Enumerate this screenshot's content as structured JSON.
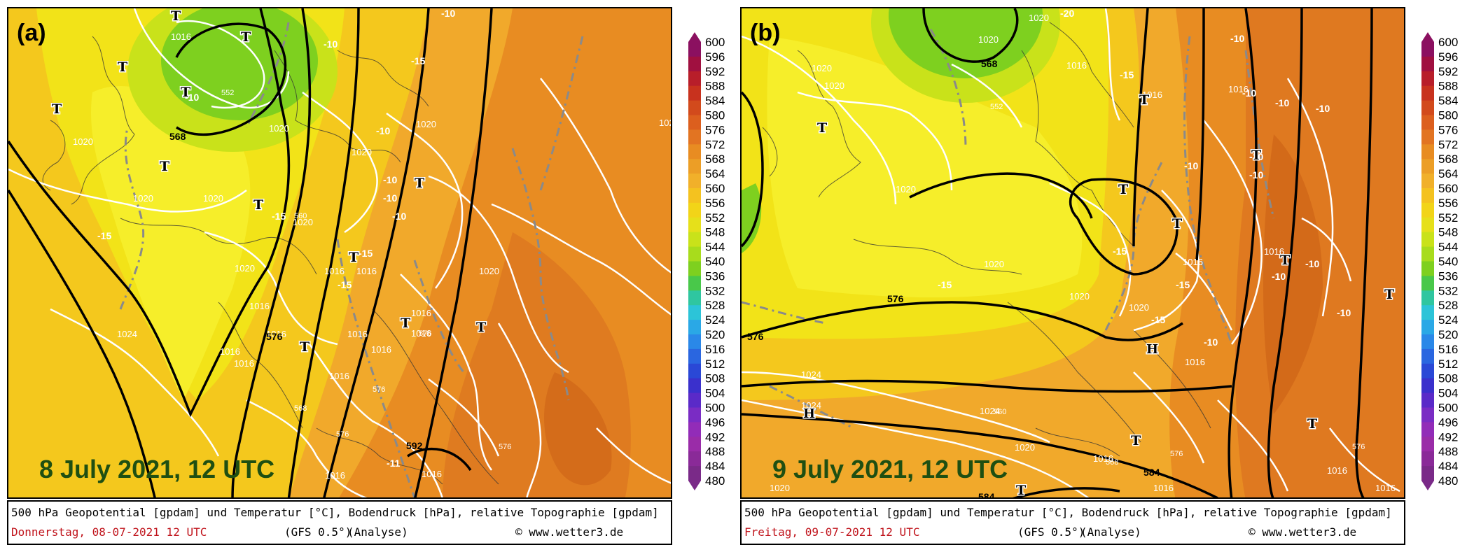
{
  "colors": {
    "geo_fill_green": "#7ed01f",
    "geo_fill_yellowgreen": "#c9e21a",
    "geo_fill_yellow": "#f2e318",
    "geo_fill_yelloworange": "#f4c81d",
    "geo_fill_lightorange": "#f1a92b",
    "geo_fill_orange": "#e88c22",
    "geo_fill_darkorange": "#dc7420",
    "geopotential_contour": "#000000",
    "surface_pressure_contour": "#ffffff",
    "temperature_contour": "#808080",
    "date_label": "#1f4f12",
    "info_date": "#c0141c"
  },
  "colorbar": {
    "labels": [
      "600",
      "596",
      "592",
      "588",
      "584",
      "580",
      "576",
      "572",
      "568",
      "564",
      "560",
      "556",
      "552",
      "548",
      "544",
      "540",
      "536",
      "532",
      "528",
      "524",
      "520",
      "516",
      "512",
      "508",
      "504",
      "500",
      "496",
      "492",
      "488",
      "484",
      "480"
    ],
    "colors": [
      "#8b1060",
      "#a01040",
      "#b81e2a",
      "#c8321e",
      "#d24a1c",
      "#dc5f1e",
      "#e27422",
      "#e88c22",
      "#ec9e26",
      "#f1b02a",
      "#f4c21f",
      "#f2d418",
      "#e6e01a",
      "#c9e21a",
      "#a8dc1c",
      "#7ed01f",
      "#49c84a",
      "#2fc6a0",
      "#2cc4d8",
      "#2aa8e6",
      "#2a88e8",
      "#2a66e0",
      "#2a48d6",
      "#3a30cc",
      "#5a2ac8",
      "#7a2cc4",
      "#922cb8",
      "#9a2ca8",
      "#8a2a98",
      "#7a2a88"
    ]
  },
  "panels": [
    {
      "letter": "(a)",
      "date_label": "8 July 2021, 12 UTC",
      "info_line1": "500 hPa Geopotential [gpdam] und Temperatur [°C], Bodendruck [hPa], relative Topographie [gpdam]",
      "info_date": "Donnerstag, 08-07-2021  12 UTC",
      "info_model": "(GFS 0.5°)",
      "info_analysis": "(Analyse)",
      "info_credit": "© www.wetter3.de",
      "geopotential_labels": [
        "568",
        "576",
        "592"
      ],
      "pressure_labels": [
        "1016",
        "1020",
        "1020",
        "1020",
        "1020",
        "1020",
        "1020",
        "1020",
        "1024",
        "1020",
        "1016",
        "1016",
        "1016",
        "1016",
        "1016",
        "1016",
        "1016",
        "1016",
        "1016",
        "1016",
        "1016",
        "1016",
        "1016",
        "1020",
        "102"
      ],
      "temperature_labels": [
        "-10",
        "-15",
        "-10",
        "-15",
        "-15",
        "-10",
        "-10",
        "-10",
        "-10",
        "-15",
        "-15",
        "-11",
        "-10"
      ],
      "low_markers": [
        "T",
        "T",
        "T",
        "T",
        "T",
        "T",
        "T",
        "T",
        "T",
        "T",
        "T",
        "T"
      ],
      "topo_labels": [
        "552",
        "560",
        "576",
        "576",
        "576",
        "568",
        "576"
      ]
    },
    {
      "letter": "(b)",
      "date_label": "9 July 2021, 12 UTC",
      "info_line1": "500 hPa Geopotential [gpdam] und Temperatur [°C], Bodendruck [hPa], relative Topographie [gpdam]",
      "info_date": "Freitag, 09-07-2021  12 UTC",
      "info_model": "(GFS 0.5°)",
      "info_analysis": "(Analyse)",
      "info_credit": "© www.wetter3.de",
      "geopotential_labels": [
        "568",
        "576",
        "576",
        "584",
        "584"
      ],
      "pressure_labels": [
        "1020",
        "1020",
        "1020",
        "1020",
        "1020",
        "1020",
        "1016",
        "1016",
        "1020",
        "1024",
        "1024",
        "1024",
        "1016",
        "1020",
        "1016",
        "1016",
        "1016",
        "1016",
        "1016",
        "1016",
        "1020",
        "1020",
        "1016"
      ],
      "temperature_labels": [
        "-20",
        "-15",
        "-10",
        "-10",
        "-10",
        "-10",
        "-10",
        "-10",
        "-15",
        "-15",
        "-15",
        "-15",
        "-10",
        "-10",
        "-10",
        "-10",
        "-10"
      ],
      "low_markers": [
        "T",
        "T",
        "T",
        "T",
        "T",
        "T",
        "T",
        "T",
        "T",
        "T"
      ],
      "high_markers": [
        "H",
        "H"
      ],
      "topo_labels": [
        "552",
        "560",
        "568",
        "576",
        "576"
      ]
    }
  ]
}
